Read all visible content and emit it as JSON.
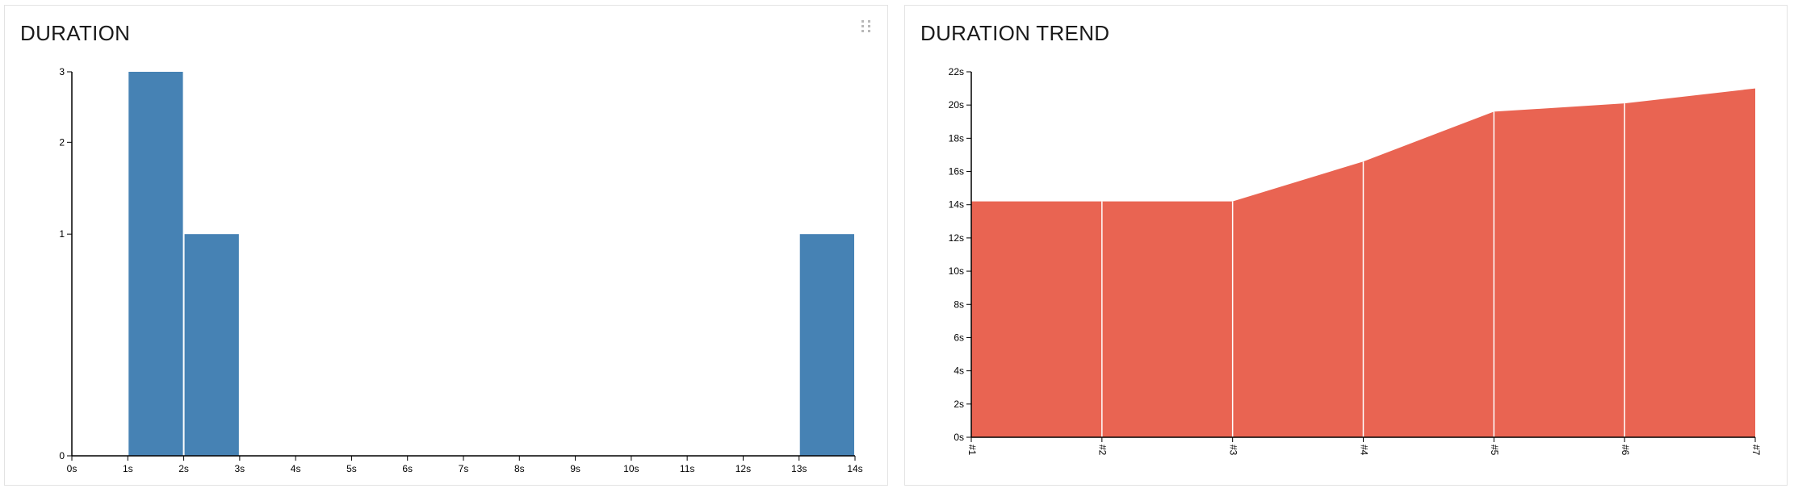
{
  "widgets": [
    {
      "title": "DURATION"
    },
    {
      "title": "DURATION TREND"
    }
  ],
  "chart_data": [
    {
      "type": "bar",
      "title": "DURATION",
      "xlabel": "",
      "ylabel": "",
      "x_ticks": [
        "0s",
        "1s",
        "2s",
        "3s",
        "4s",
        "5s",
        "6s",
        "7s",
        "8s",
        "9s",
        "10s",
        "11s",
        "12s",
        "13s",
        "14s"
      ],
      "y_ticks": [
        "0",
        "1",
        "2",
        "3"
      ],
      "bins": [
        {
          "x0": 1,
          "x1": 2,
          "count": 3
        },
        {
          "x0": 2,
          "x1": 3,
          "count": 1
        },
        {
          "x0": 13,
          "x1": 14,
          "count": 1
        }
      ],
      "xlim": [
        0,
        14
      ],
      "ylim": [
        0,
        3
      ],
      "y_scale": "sqrt",
      "color": "#4682b4",
      "grid": false
    },
    {
      "type": "area",
      "title": "DURATION TREND",
      "xlabel": "",
      "ylabel": "",
      "categories": [
        "#1",
        "#2",
        "#3",
        "#4",
        "#5",
        "#6",
        "#7"
      ],
      "values": [
        14.2,
        14.2,
        14.2,
        16.6,
        19.6,
        20.1,
        21.0
      ],
      "y_ticks": [
        "0s",
        "2s",
        "4s",
        "6s",
        "8s",
        "10s",
        "12s",
        "14s",
        "16s",
        "18s",
        "20s",
        "22s"
      ],
      "ylim": [
        0,
        22
      ],
      "color": "#e96452",
      "grid": false
    }
  ]
}
